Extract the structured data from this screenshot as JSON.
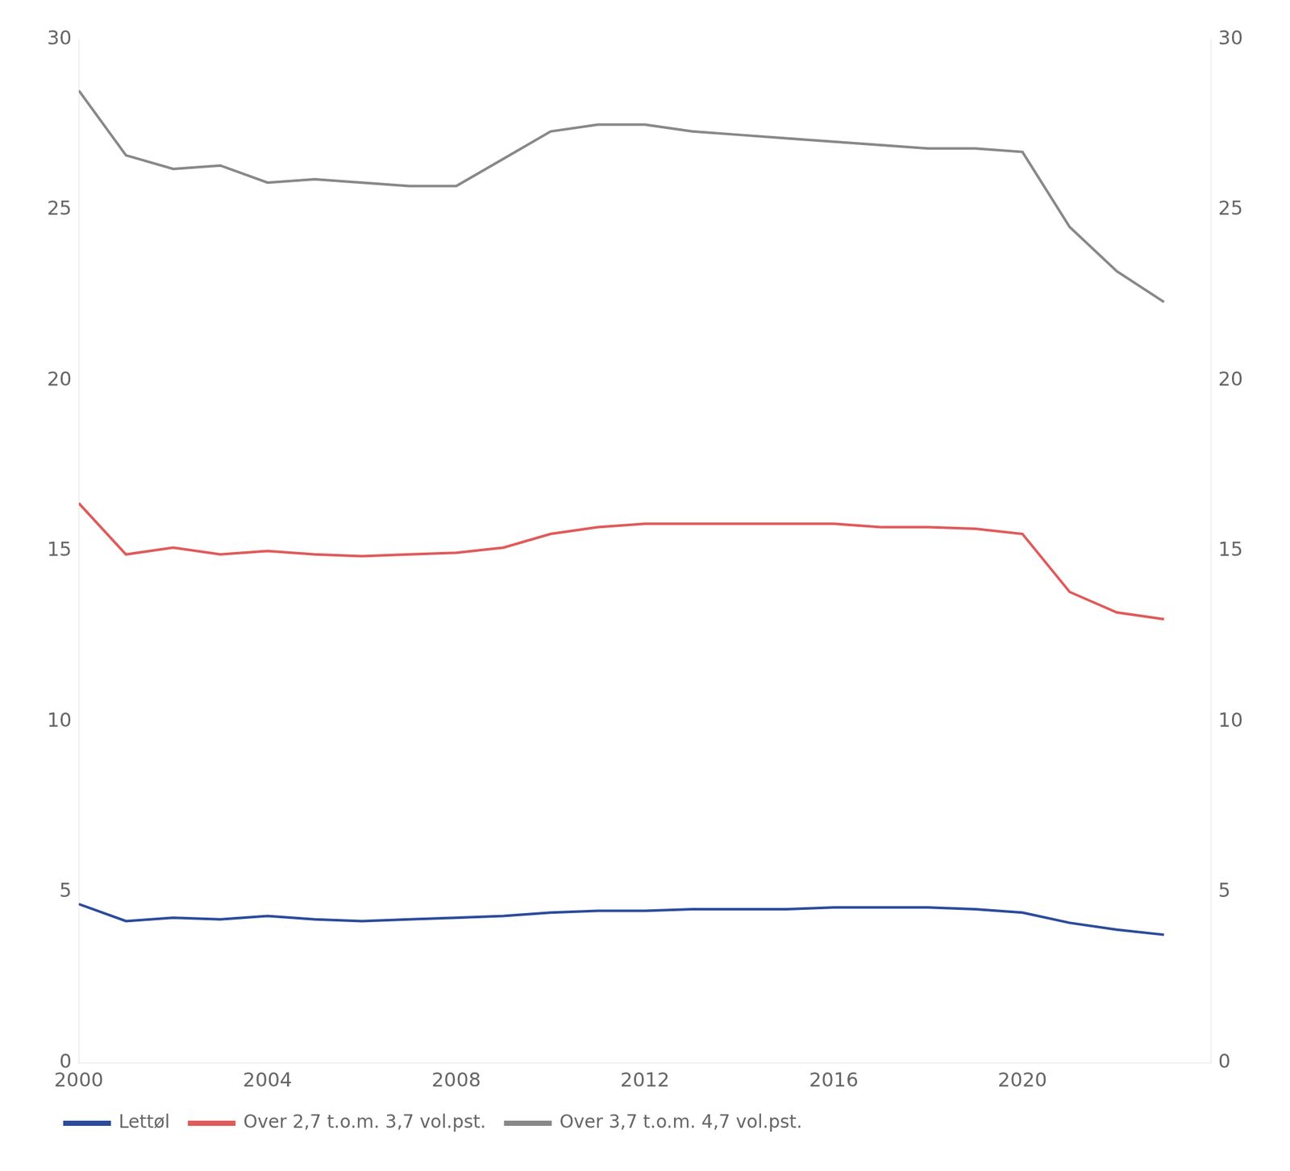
{
  "chart_data": {
    "type": "line",
    "x": [
      2000,
      2001,
      2002,
      2003,
      2004,
      2005,
      2006,
      2007,
      2008,
      2009,
      2010,
      2011,
      2012,
      2013,
      2014,
      2015,
      2016,
      2017,
      2018,
      2019,
      2020,
      2021,
      2022,
      2023
    ],
    "series": [
      {
        "name": "Lettøl",
        "color": "#2b4b9b",
        "values": [
          4.65,
          4.15,
          4.25,
          4.2,
          4.3,
          4.2,
          4.15,
          4.2,
          4.25,
          4.3,
          4.4,
          4.45,
          4.45,
          4.5,
          4.5,
          4.5,
          4.55,
          4.55,
          4.55,
          4.5,
          4.4,
          4.1,
          3.9,
          3.75
        ]
      },
      {
        "name": "Over 2,7 t.o.m. 3,7 vol.pst.",
        "color": "#e05a5a",
        "values": [
          16.4,
          14.9,
          15.1,
          14.9,
          15.0,
          14.9,
          14.85,
          14.9,
          14.95,
          15.1,
          15.5,
          15.7,
          15.8,
          15.8,
          15.8,
          15.8,
          15.8,
          15.7,
          15.7,
          15.65,
          15.5,
          13.8,
          13.2,
          13.0
        ]
      },
      {
        "name": "Over 3,7 t.o.m. 4,7 vol.pst.",
        "color": "#888888",
        "values": [
          28.5,
          26.6,
          26.2,
          26.3,
          25.8,
          25.9,
          25.8,
          25.7,
          25.7,
          26.5,
          27.3,
          27.5,
          27.5,
          27.3,
          27.2,
          27.1,
          27.0,
          26.9,
          26.8,
          26.8,
          26.7,
          24.5,
          23.2,
          22.3
        ]
      }
    ],
    "xlim": [
      2000,
      2024
    ],
    "xticks": [
      2000,
      2004,
      2008,
      2012,
      2016,
      2020
    ],
    "ylim": [
      0,
      30
    ],
    "yticks": [
      0,
      5,
      10,
      15,
      20,
      25,
      30
    ],
    "y2lim": [
      0,
      30
    ],
    "y2ticks": [
      0,
      5,
      10,
      15,
      20,
      25,
      30
    ],
    "grid": false,
    "legend": "bottom"
  }
}
